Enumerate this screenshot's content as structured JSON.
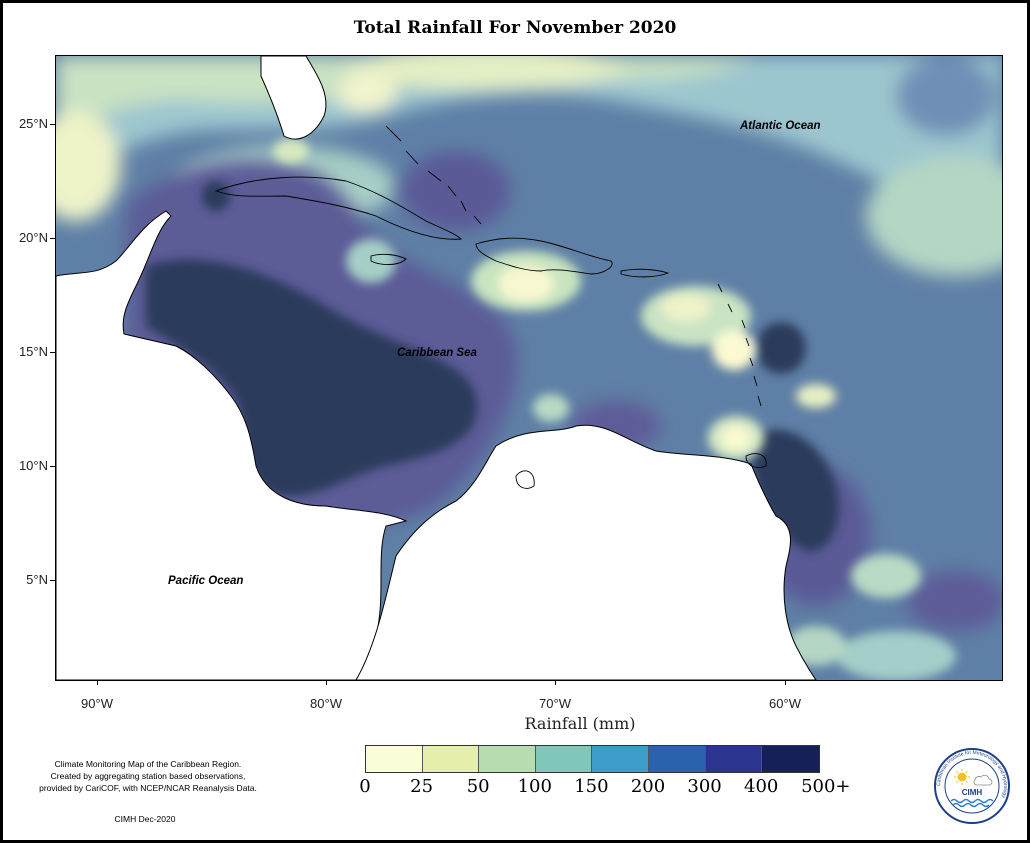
{
  "title": "Total Rainfall For November 2020",
  "axis": {
    "latitude_ticks": [
      "25°N",
      "20°N",
      "15°N",
      "10°N",
      "5°N"
    ],
    "longitude_ticks": [
      "90°W",
      "80°W",
      "70°W",
      "60°W"
    ],
    "xlabel": "Rainfall (mm)"
  },
  "labels": {
    "atlantic": "Atlantic Ocean",
    "caribbean": "Caribbean Sea",
    "pacific": "Pacific Ocean"
  },
  "legend": {
    "breaks": [
      "0",
      "25",
      "50",
      "100",
      "150",
      "200",
      "300",
      "400",
      "500+"
    ],
    "colors": [
      "#fbfcd8",
      "#e6f0ac",
      "#b6dcb0",
      "#7fc7b8",
      "#3e9cc8",
      "#2a63ad",
      "#2b3590",
      "#151f58"
    ]
  },
  "note": {
    "line1": "Climate Monitoring Map of the Caribbean Region.",
    "line2": "Created by aggregating station based observations,",
    "line3": "provided by CariCOF, with NCEP/NCAR Reanalysis Data."
  },
  "credit": "CIMH Dec-2020",
  "logo": {
    "name": "CIMH",
    "ring_text": "Caribbean Institute for Meteorology and Hydrology"
  },
  "palette": {
    "map_light": "#fbfad2",
    "map_green": "#d4e9c2",
    "map_teal": "#a9d3c8",
    "map_blue": "#6fa3c8",
    "map_slate": "#5c7fa5",
    "map_purple": "#5d5c98",
    "map_dark": "#2c3a5c"
  }
}
